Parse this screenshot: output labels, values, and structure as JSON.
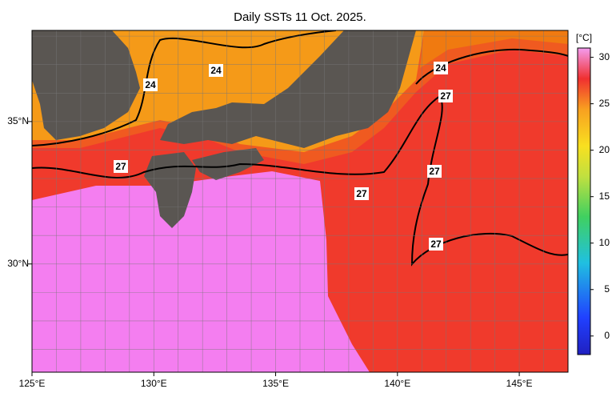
{
  "title": "Daily SSTs 11 Oct. 2025.",
  "map": {
    "lonlim": [
      125,
      147
    ],
    "latlim": [
      26.2,
      38.2
    ],
    "lon_ticks": [
      {
        "value": 125,
        "label": "125°E"
      },
      {
        "value": 130,
        "label": "130°E"
      },
      {
        "value": 135,
        "label": "135°E"
      },
      {
        "value": 140,
        "label": "140°E"
      },
      {
        "value": 145,
        "label": "145°E"
      }
    ],
    "lat_ticks": [
      {
        "value": 35,
        "label": "35°N"
      },
      {
        "value": 30,
        "label": "30°N"
      }
    ],
    "contour_labels": [
      24,
      24,
      24,
      27,
      27,
      27,
      27,
      27
    ]
  },
  "colorbar": {
    "unit": "[°C]",
    "range": [
      -2,
      31
    ],
    "ticks": [
      0,
      5,
      10,
      15,
      20,
      25,
      30
    ]
  }
}
